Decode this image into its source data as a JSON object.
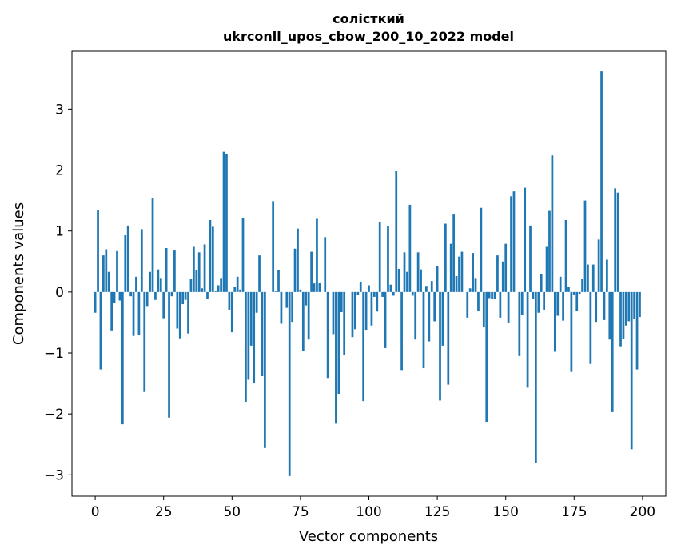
{
  "chart_data": {
    "type": "bar",
    "title_line1": "солісткий",
    "title_line2": "ukrconll_upos_cbow_200_10_2022 model",
    "xlabel": "Vector components",
    "ylabel": "Components values",
    "xlim": [
      -8.5,
      208.5
    ],
    "ylim": [
      -3.35,
      3.95
    ],
    "x_ticks": [
      0,
      25,
      50,
      75,
      100,
      125,
      150,
      175,
      200
    ],
    "x_tick_labels": [
      "0",
      "25",
      "50",
      "75",
      "100",
      "125",
      "150",
      "175",
      "200"
    ],
    "y_ticks": [
      -3,
      -2,
      -1,
      0,
      1,
      2,
      3
    ],
    "y_tick_labels": [
      "−3",
      "−2",
      "−1",
      "0",
      "1",
      "2",
      "3"
    ],
    "bar_color": "#1f77b4",
    "grid": false,
    "x": [
      0,
      1,
      2,
      3,
      4,
      5,
      6,
      7,
      8,
      9,
      10,
      11,
      12,
      13,
      14,
      15,
      16,
      17,
      18,
      19,
      20,
      21,
      22,
      23,
      24,
      25,
      26,
      27,
      28,
      29,
      30,
      31,
      32,
      33,
      34,
      35,
      36,
      37,
      38,
      39,
      40,
      41,
      42,
      43,
      44,
      45,
      46,
      47,
      48,
      49,
      50,
      51,
      52,
      53,
      54,
      55,
      56,
      57,
      58,
      59,
      60,
      61,
      62,
      63,
      64,
      65,
      66,
      67,
      68,
      69,
      70,
      71,
      72,
      73,
      74,
      75,
      76,
      77,
      78,
      79,
      80,
      81,
      82,
      83,
      84,
      85,
      86,
      87,
      88,
      89,
      90,
      91,
      92,
      93,
      94,
      95,
      96,
      97,
      98,
      99,
      100,
      101,
      102,
      103,
      104,
      105,
      106,
      107,
      108,
      109,
      110,
      111,
      112,
      113,
      114,
      115,
      116,
      117,
      118,
      119,
      120,
      121,
      122,
      123,
      124,
      125,
      126,
      127,
      128,
      129,
      130,
      131,
      132,
      133,
      134,
      135,
      136,
      137,
      138,
      139,
      140,
      141,
      142,
      143,
      144,
      145,
      146,
      147,
      148,
      149,
      150,
      151,
      152,
      153,
      154,
      155,
      156,
      157,
      158,
      159,
      160,
      161,
      162,
      163,
      164,
      165,
      166,
      167,
      168,
      169,
      170,
      171,
      172,
      173,
      174,
      175,
      176,
      177,
      178,
      179,
      180,
      181,
      182,
      183,
      184,
      185,
      186,
      187,
      188,
      189,
      190,
      191,
      192,
      193,
      194,
      195,
      196,
      197,
      198,
      199
    ],
    "values": [
      -0.34,
      1.35,
      -1.27,
      0.6,
      0.7,
      0.33,
      -0.63,
      -0.18,
      0.67,
      -0.14,
      -2.17,
      0.93,
      1.09,
      -0.07,
      -0.72,
      0.25,
      -0.7,
      1.03,
      -1.64,
      -0.23,
      0.33,
      1.54,
      -0.13,
      0.37,
      0.23,
      -0.43,
      0.72,
      -2.06,
      -0.07,
      0.68,
      -0.6,
      -0.76,
      -0.2,
      -0.13,
      -0.68,
      0.22,
      0.74,
      0.36,
      0.65,
      0.06,
      0.78,
      -0.12,
      1.18,
      1.07,
      0.01,
      0.11,
      0.23,
      2.3,
      2.27,
      -0.29,
      -0.66,
      0.08,
      0.25,
      0.04,
      1.22,
      -1.8,
      -1.44,
      -0.88,
      -1.5,
      -0.34,
      0.6,
      -1.38,
      -2.56,
      0.0,
      0.0,
      1.49,
      0.01,
      0.36,
      -0.52,
      0.0,
      -0.26,
      -3.02,
      -0.49,
      0.71,
      1.04,
      0.04,
      -0.97,
      -0.22,
      -0.78,
      0.66,
      0.14,
      1.2,
      0.15,
      0.0,
      0.9,
      -1.41,
      0.0,
      -0.69,
      -2.16,
      -1.67,
      -0.33,
      -1.03,
      0.0,
      0.0,
      -0.74,
      -0.61,
      -0.05,
      0.17,
      -1.79,
      -0.62,
      0.11,
      -0.55,
      -0.08,
      -0.32,
      1.15,
      -0.08,
      -0.92,
      1.08,
      0.12,
      -0.06,
      1.98,
      0.38,
      -1.28,
      0.65,
      0.33,
      1.43,
      -0.06,
      -0.78,
      0.65,
      0.37,
      -1.25,
      0.1,
      -0.81,
      0.18,
      -0.48,
      0.42,
      -1.78,
      -0.88,
      1.12,
      -1.52,
      0.79,
      1.27,
      0.26,
      0.58,
      0.66,
      0.0,
      -0.42,
      0.06,
      0.64,
      0.23,
      -0.31,
      1.38,
      -0.57,
      -2.13,
      -0.1,
      -0.11,
      -0.11,
      0.6,
      -0.42,
      0.5,
      0.79,
      -0.5,
      1.57,
      1.65,
      0.0,
      -1.05,
      -0.37,
      1.71,
      -1.57,
      1.09,
      -0.11,
      -2.81,
      -0.34,
      0.29,
      -0.29,
      0.74,
      1.33,
      2.24,
      -0.98,
      -0.39,
      0.25,
      -0.47,
      1.18,
      0.09,
      -1.31,
      -0.05,
      -0.31,
      -0.03,
      0.22,
      1.5,
      0.45,
      -1.18,
      0.45,
      -0.49,
      0.86,
      3.62,
      -0.46,
      0.53,
      -0.78,
      -1.97,
      1.7,
      1.63,
      -0.89,
      -0.77,
      -0.55,
      -0.48,
      -2.58,
      -0.44,
      -1.27,
      -0.41
    ]
  }
}
